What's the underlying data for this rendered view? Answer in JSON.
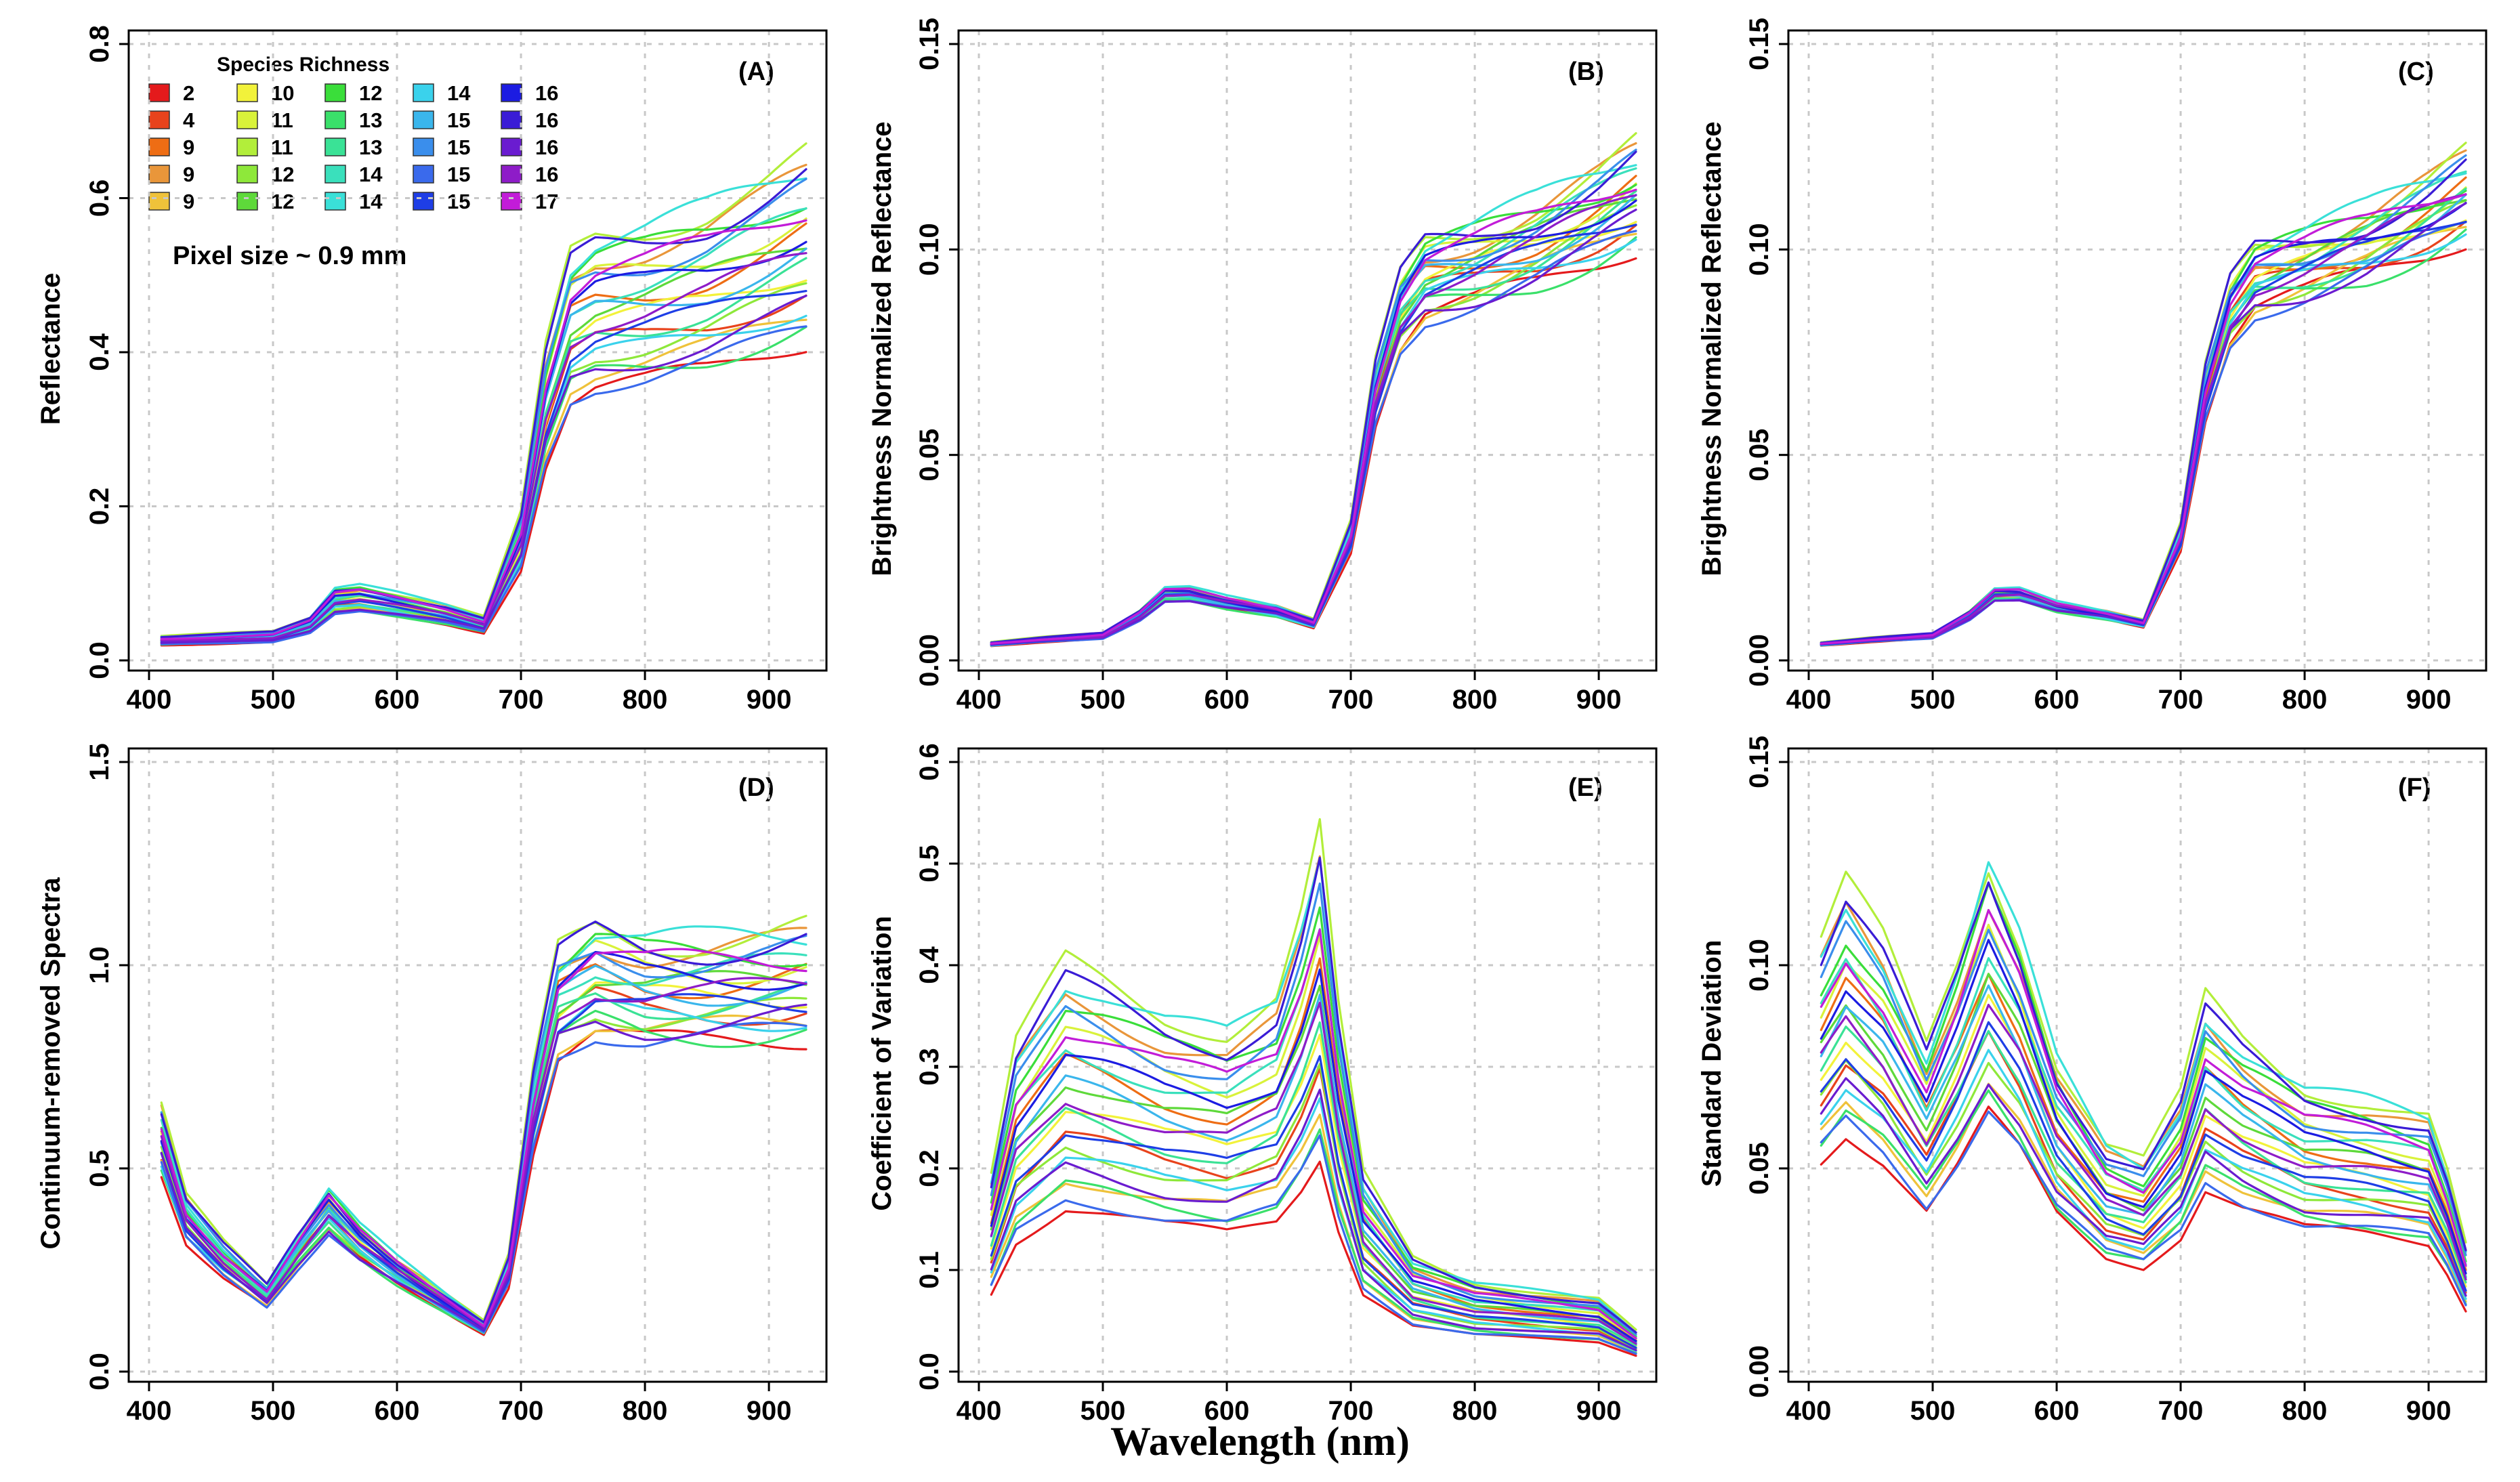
{
  "figure": {
    "shared_xlabel": "Wavelength (nm)",
    "legend": {
      "title": "Species Richness",
      "entries": [
        {
          "label": "2",
          "color": "#e41a1c"
        },
        {
          "label": "4",
          "color": "#e8431c"
        },
        {
          "label": "9",
          "color": "#ee6d14"
        },
        {
          "label": "9",
          "color": "#e9963a"
        },
        {
          "label": "9",
          "color": "#efc23a"
        },
        {
          "label": "10",
          "color": "#f2f23a"
        },
        {
          "label": "11",
          "color": "#d9f23a"
        },
        {
          "label": "11",
          "color": "#b2ee3a"
        },
        {
          "label": "12",
          "color": "#8ee83a"
        },
        {
          "label": "12",
          "color": "#5ed93a"
        },
        {
          "label": "12",
          "color": "#3ade3a"
        },
        {
          "label": "13",
          "color": "#3ae06a"
        },
        {
          "label": "13",
          "color": "#3ae296"
        },
        {
          "label": "14",
          "color": "#3ae0bc"
        },
        {
          "label": "14",
          "color": "#3ae0d8"
        },
        {
          "label": "14",
          "color": "#3ad2ec"
        },
        {
          "label": "15",
          "color": "#3ab6ec"
        },
        {
          "label": "15",
          "color": "#3a8eec"
        },
        {
          "label": "15",
          "color": "#3a6aec"
        },
        {
          "label": "15",
          "color": "#1e3ee6"
        },
        {
          "label": "16",
          "color": "#1c1ce2"
        },
        {
          "label": "16",
          "color": "#3a1cd6"
        },
        {
          "label": "16",
          "color": "#6a1cd0"
        },
        {
          "label": "16",
          "color": "#8e1cc8"
        },
        {
          "label": "17",
          "color": "#c21cd8"
        }
      ],
      "note": "Pixel size ~ 0.9 mm"
    }
  },
  "chart_data": [
    {
      "panel": "(A)",
      "type": "line",
      "title": "",
      "xlabel": "",
      "ylabel": "Reflectance",
      "xlim": [
        400,
        930
      ],
      "ylim": [
        0,
        0.8
      ],
      "xticks": [
        "400",
        "500",
        "600",
        "700",
        "800",
        "900"
      ],
      "yticks": [
        "0.0",
        "0.2",
        "0.4",
        "0.6",
        "0.8"
      ],
      "x_anchor_nm": [
        410,
        450,
        500,
        530,
        550,
        570,
        600,
        640,
        670,
        700,
        720,
        740,
        760,
        800,
        850,
        900,
        930
      ],
      "series_template": [
        0.025,
        0.027,
        0.03,
        0.045,
        0.075,
        0.078,
        0.07,
        0.058,
        0.045,
        0.15,
        0.32,
        0.42,
        0.44,
        0.45,
        0.47,
        0.5,
        0.52
      ],
      "series_scale_range": [
        0.8,
        1.25
      ],
      "series_count": 25
    },
    {
      "panel": "(B)",
      "type": "line",
      "title": "",
      "xlabel": "",
      "ylabel": "Brightness Normalized Reflectance",
      "xlim": [
        400,
        930
      ],
      "ylim": [
        0,
        0.15
      ],
      "xticks": [
        "400",
        "500",
        "600",
        "700",
        "800",
        "900"
      ],
      "yticks": [
        "0.00",
        "0.05",
        "0.10",
        "0.15"
      ],
      "x_anchor_nm": [
        410,
        450,
        500,
        530,
        550,
        570,
        600,
        640,
        670,
        700,
        720,
        740,
        760,
        800,
        850,
        900,
        930
      ],
      "series_template": [
        0.004,
        0.005,
        0.006,
        0.011,
        0.016,
        0.016,
        0.014,
        0.012,
        0.009,
        0.03,
        0.065,
        0.085,
        0.093,
        0.096,
        0.101,
        0.108,
        0.113
      ],
      "series_scale_range": [
        0.9,
        1.1
      ],
      "series_count": 25
    },
    {
      "panel": "(C)",
      "type": "line",
      "title": "",
      "xlabel": "",
      "ylabel": "Brightness Normalized Reflectance",
      "xlim": [
        400,
        930
      ],
      "ylim": [
        0,
        0.15
      ],
      "xticks": [
        "400",
        "500",
        "600",
        "700",
        "800",
        "900"
      ],
      "yticks": [
        "0.00",
        "0.05",
        "0.10",
        "0.15"
      ],
      "x_anchor_nm": [
        410,
        450,
        500,
        530,
        550,
        570,
        600,
        640,
        670,
        700,
        720,
        740,
        760,
        800,
        850,
        900,
        930
      ],
      "series_template": [
        0.004,
        0.005,
        0.006,
        0.011,
        0.016,
        0.016,
        0.013,
        0.011,
        0.009,
        0.03,
        0.065,
        0.085,
        0.093,
        0.096,
        0.101,
        0.108,
        0.113
      ],
      "series_scale_range": [
        0.92,
        1.08
      ],
      "series_count": 25
    },
    {
      "panel": "(D)",
      "type": "line",
      "title": "",
      "xlabel": "",
      "ylabel": "Continuum-removed Spectra",
      "xlim": [
        400,
        930
      ],
      "ylim": [
        0,
        1.5
      ],
      "xticks": [
        "400",
        "500",
        "600",
        "700",
        "800",
        "900"
      ],
      "yticks": [
        "0.0",
        "0.5",
        "1.0",
        "1.5"
      ],
      "x_anchor_nm": [
        410,
        430,
        460,
        495,
        520,
        545,
        570,
        600,
        640,
        670,
        690,
        710,
        730,
        760,
        800,
        850,
        900,
        930
      ],
      "series_template": [
        0.58,
        0.38,
        0.28,
        0.19,
        0.3,
        0.4,
        0.32,
        0.25,
        0.17,
        0.11,
        0.25,
        0.65,
        0.92,
        0.98,
        0.95,
        0.95,
        0.96,
        0.97
      ],
      "series_scale_range": [
        0.85,
        1.12
      ],
      "series_count": 25
    },
    {
      "panel": "(E)",
      "type": "line",
      "title": "",
      "xlabel": "",
      "ylabel": "Coefficient of Variation",
      "xlim": [
        400,
        930
      ],
      "ylim": [
        0,
        0.6
      ],
      "xticks": [
        "400",
        "500",
        "600",
        "700",
        "800",
        "900"
      ],
      "yticks": [
        "0.0",
        "0.1",
        "0.2",
        "0.3",
        "0.4",
        "0.5",
        "0.6"
      ],
      "x_anchor_nm": [
        410,
        430,
        470,
        500,
        550,
        600,
        640,
        660,
        675,
        690,
        710,
        750,
        800,
        850,
        900,
        930
      ],
      "series_template": [
        0.12,
        0.2,
        0.25,
        0.24,
        0.22,
        0.21,
        0.23,
        0.28,
        0.33,
        0.22,
        0.12,
        0.07,
        0.055,
        0.05,
        0.045,
        0.025
      ],
      "series_scale_range": [
        0.65,
        1.6
      ],
      "series_count": 25
    },
    {
      "panel": "(F)",
      "type": "line",
      "title": "",
      "xlabel": "",
      "ylabel": "Standard Deviation",
      "xlim": [
        400,
        930
      ],
      "ylim": [
        0,
        0.15
      ],
      "xticks": [
        "400",
        "500",
        "600",
        "700",
        "800",
        "900"
      ],
      "yticks": [
        "0.00",
        "0.05",
        "0.10",
        "0.15"
      ],
      "x_anchor_nm": [
        410,
        430,
        460,
        495,
        520,
        545,
        570,
        600,
        640,
        670,
        700,
        720,
        750,
        800,
        850,
        900,
        915,
        930
      ],
      "series_template": [
        0.075,
        0.085,
        0.075,
        0.057,
        0.072,
        0.09,
        0.077,
        0.055,
        0.04,
        0.037,
        0.048,
        0.065,
        0.058,
        0.05,
        0.048,
        0.045,
        0.035,
        0.022
      ],
      "series_scale_range": [
        0.7,
        1.4
      ],
      "series_count": 25
    }
  ]
}
